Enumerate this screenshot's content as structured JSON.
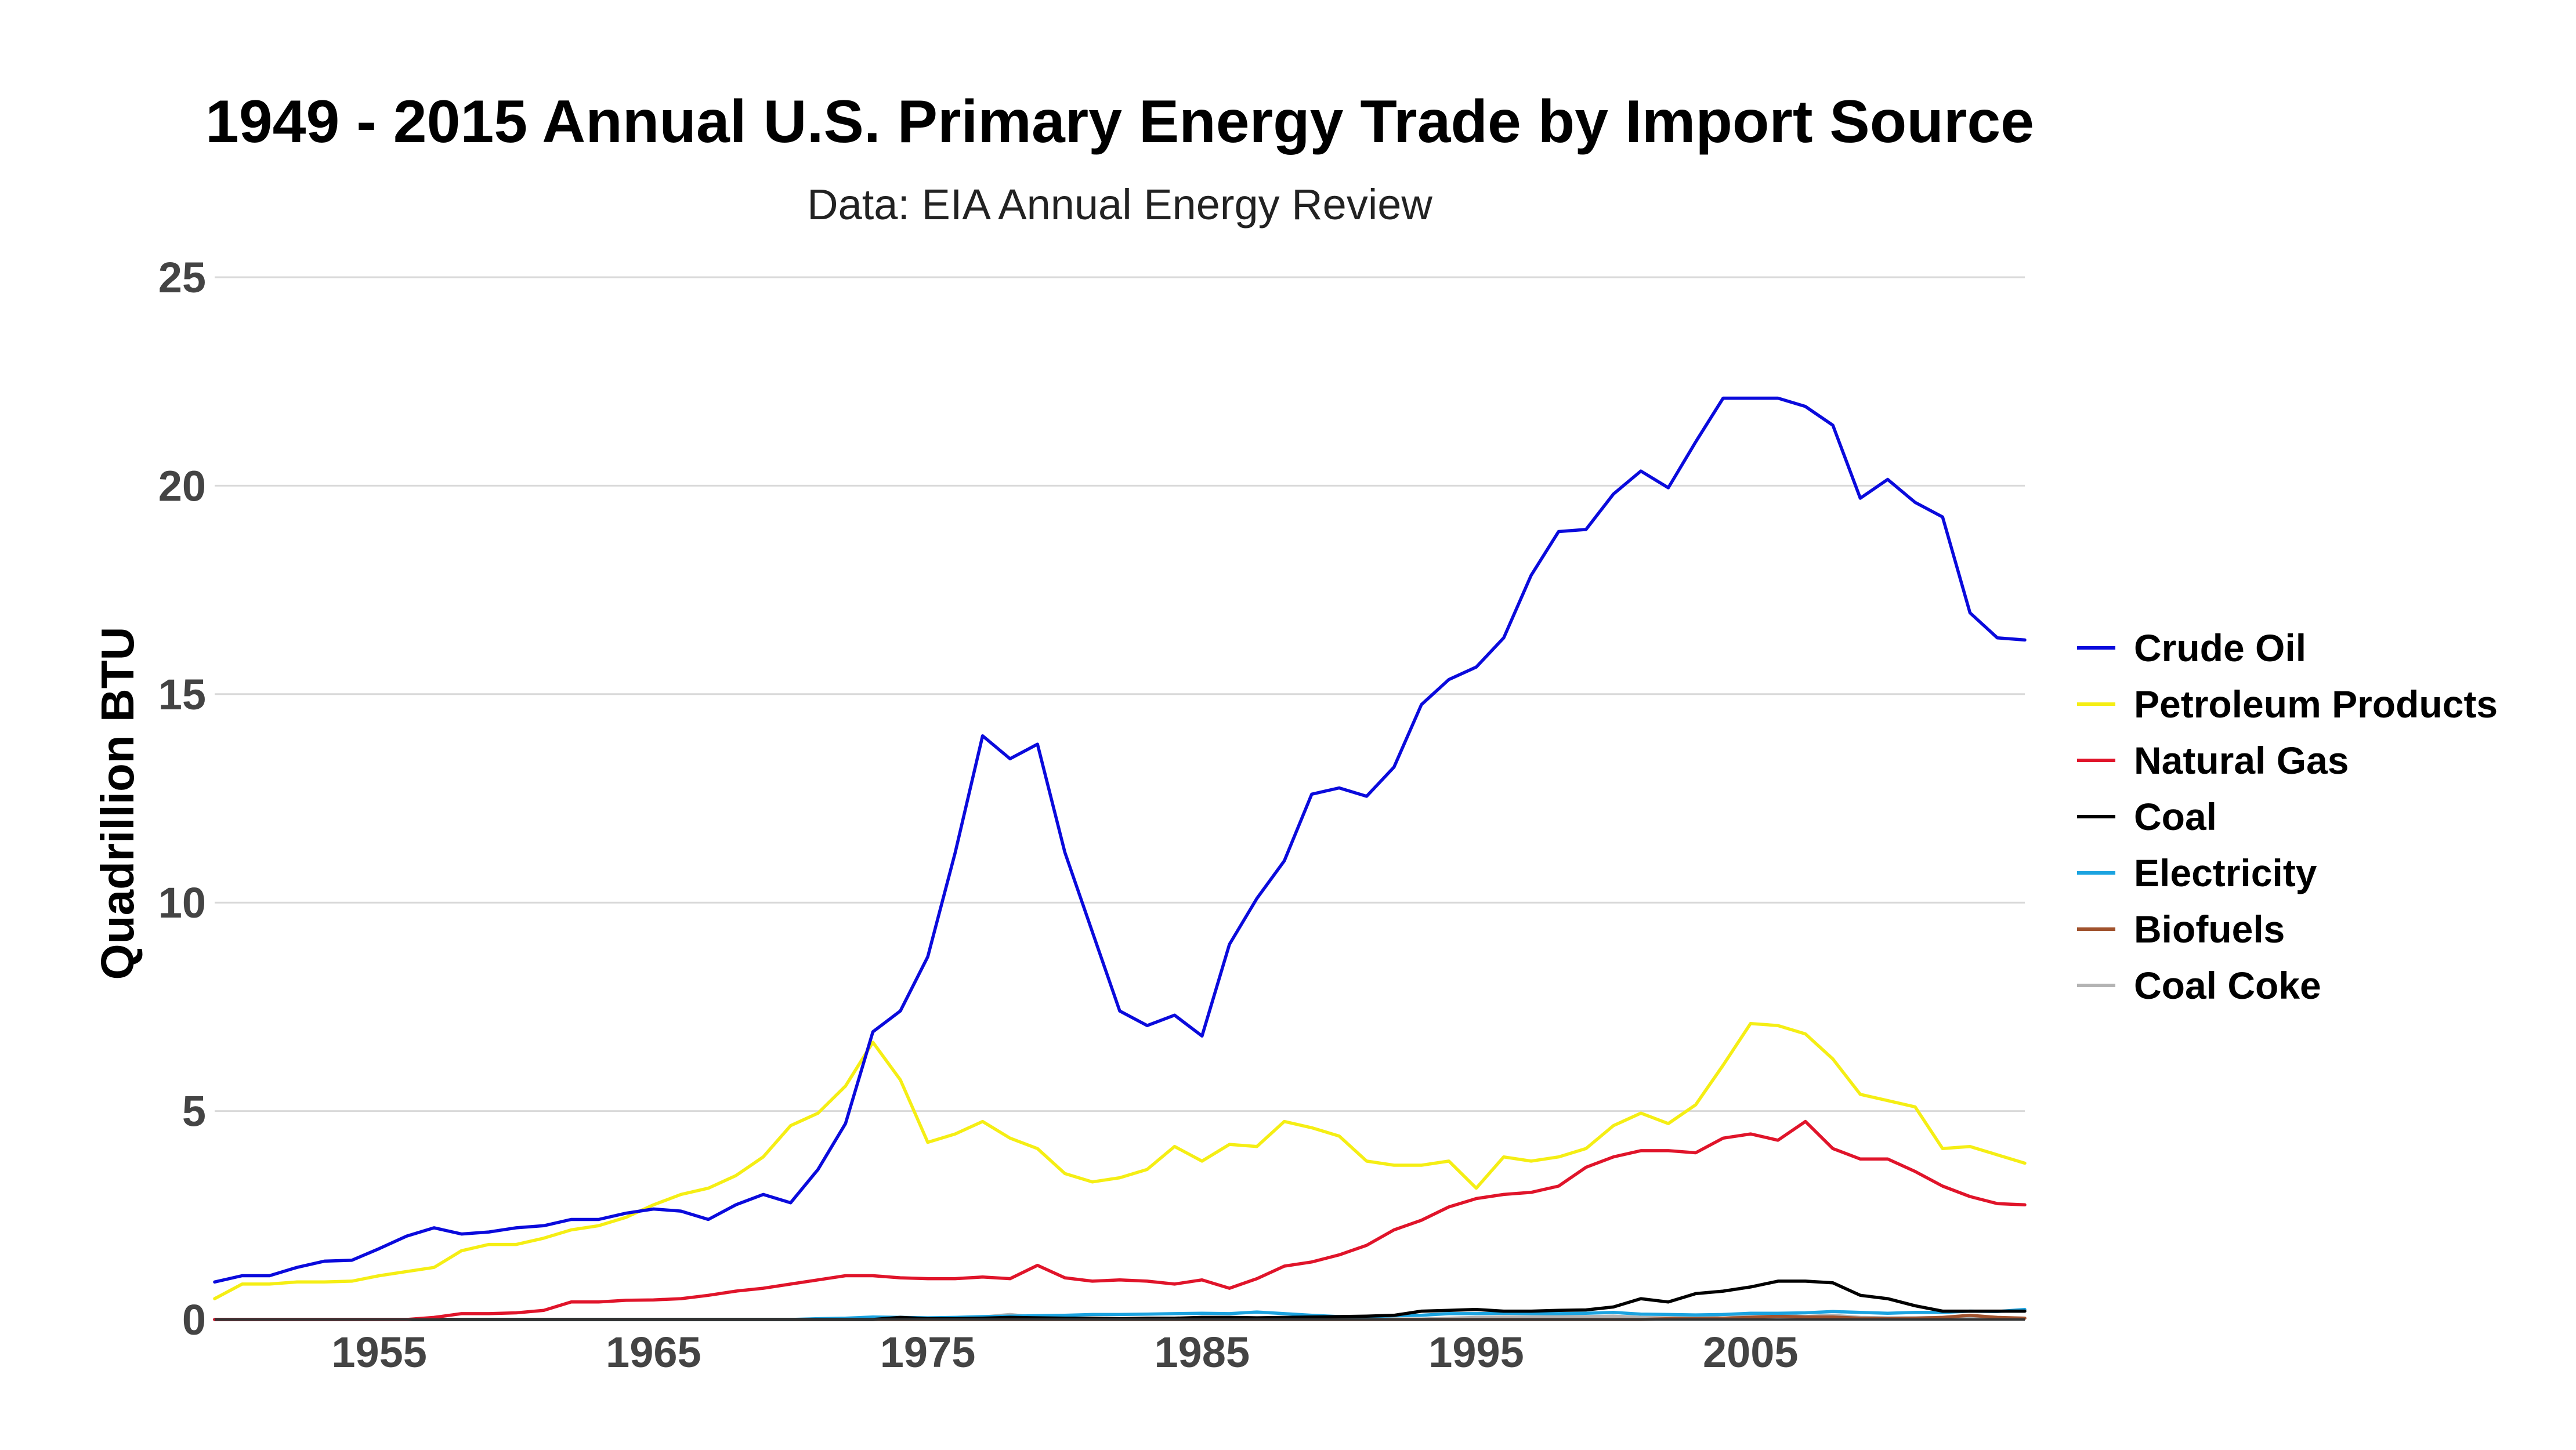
{
  "chart_data": {
    "type": "line",
    "title": "1949 - 2015 Annual U.S. Primary Energy Trade by Import Source",
    "subtitle": "Data: EIA Annual Energy Review",
    "xlabel": "",
    "ylabel": "Quadrillion BTU",
    "xlim": [
      1949,
      2015
    ],
    "ylim": [
      0,
      25
    ],
    "xticks": [
      1955,
      1965,
      1975,
      1985,
      1995,
      2005
    ],
    "yticks": [
      0,
      5,
      10,
      15,
      20,
      25
    ],
    "grid": true,
    "legend_position": "right",
    "x": [
      1949,
      1950,
      1951,
      1952,
      1953,
      1954,
      1955,
      1956,
      1957,
      1958,
      1959,
      1960,
      1961,
      1962,
      1963,
      1964,
      1965,
      1966,
      1967,
      1968,
      1969,
      1970,
      1971,
      1972,
      1973,
      1974,
      1975,
      1976,
      1977,
      1978,
      1979,
      1980,
      1981,
      1982,
      1983,
      1984,
      1985,
      1986,
      1987,
      1988,
      1989,
      1990,
      1991,
      1992,
      1993,
      1994,
      1995,
      1996,
      1997,
      1998,
      1999,
      2000,
      2001,
      2002,
      2003,
      2004,
      2005,
      2006,
      2007,
      2008,
      2009,
      2010,
      2011,
      2012,
      2013,
      2014,
      2015
    ],
    "series": [
      {
        "name": "Crude Oil",
        "color": "#0a0adc",
        "values": [
          0.9,
          1.05,
          1.05,
          1.25,
          1.4,
          1.42,
          1.7,
          2.0,
          2.2,
          2.05,
          2.1,
          2.2,
          2.25,
          2.4,
          2.4,
          2.55,
          2.65,
          2.6,
          2.4,
          2.75,
          3.0,
          2.8,
          3.6,
          4.7,
          6.9,
          7.4,
          8.7,
          11.2,
          14.0,
          13.45,
          13.8,
          11.2,
          9.3,
          7.4,
          7.05,
          7.3,
          6.8,
          9.0,
          10.1,
          11.0,
          12.6,
          12.75,
          12.55,
          13.25,
          14.75,
          15.35,
          15.65,
          16.35,
          17.85,
          18.9,
          18.95,
          19.8,
          20.35,
          19.95,
          21.05,
          22.1,
          22.1,
          22.1,
          21.9,
          21.45,
          19.7,
          20.15,
          19.6,
          19.25,
          16.95,
          16.35,
          16.3
        ]
      },
      {
        "name": "Petroleum Products",
        "color": "#f5ee14",
        "values": [
          0.5,
          0.85,
          0.85,
          0.9,
          0.9,
          0.92,
          1.05,
          1.15,
          1.25,
          1.65,
          1.8,
          1.8,
          1.95,
          2.15,
          2.25,
          2.45,
          2.75,
          3.0,
          3.15,
          3.45,
          3.9,
          4.65,
          4.95,
          5.6,
          6.65,
          5.75,
          4.25,
          4.45,
          4.75,
          4.35,
          4.1,
          3.5,
          3.3,
          3.4,
          3.6,
          4.15,
          3.8,
          4.2,
          4.15,
          4.75,
          4.6,
          4.4,
          3.8,
          3.7,
          3.7,
          3.8,
          3.15,
          3.9,
          3.8,
          3.9,
          4.1,
          4.65,
          4.95,
          4.7,
          5.15,
          6.1,
          7.1,
          7.05,
          6.85,
          6.25,
          5.4,
          5.25,
          5.1,
          4.1,
          4.15,
          3.95,
          3.75
        ]
      },
      {
        "name": "Natural Gas",
        "color": "#e0142a",
        "values": [
          0,
          0,
          0,
          0,
          0,
          0,
          0,
          0,
          0.05,
          0.14,
          0.14,
          0.16,
          0.22,
          0.42,
          0.42,
          0.46,
          0.47,
          0.5,
          0.58,
          0.68,
          0.75,
          0.85,
          0.95,
          1.05,
          1.05,
          1.0,
          0.98,
          0.98,
          1.02,
          0.98,
          1.3,
          1.0,
          0.92,
          0.95,
          0.92,
          0.85,
          0.95,
          0.75,
          0.98,
          1.28,
          1.38,
          1.55,
          1.78,
          2.15,
          2.38,
          2.7,
          2.9,
          3.0,
          3.05,
          3.2,
          3.65,
          3.9,
          4.05,
          4.05,
          4.0,
          4.35,
          4.45,
          4.3,
          4.75,
          4.1,
          3.85,
          3.85,
          3.55,
          3.2,
          2.95,
          2.78,
          2.75
        ]
      },
      {
        "name": "Coal",
        "color": "#000000",
        "values": [
          0,
          0,
          0,
          0,
          0,
          0,
          0,
          0,
          0,
          0,
          0,
          0,
          0,
          0,
          0,
          0,
          0,
          0,
          0,
          0,
          0,
          0,
          0,
          0,
          0,
          0.05,
          0.02,
          0.02,
          0.03,
          0.05,
          0.04,
          0.03,
          0.03,
          0.02,
          0.03,
          0.03,
          0.05,
          0.05,
          0.04,
          0.05,
          0.06,
          0.07,
          0.08,
          0.1,
          0.2,
          0.22,
          0.24,
          0.2,
          0.2,
          0.22,
          0.23,
          0.3,
          0.5,
          0.42,
          0.62,
          0.68,
          0.78,
          0.92,
          0.92,
          0.88,
          0.58,
          0.5,
          0.33,
          0.2,
          0.2,
          0.2,
          0.2
        ]
      },
      {
        "name": "Electricity",
        "color": "#1ba3e0",
        "values": [
          0,
          0,
          0,
          0,
          0,
          0,
          0,
          0,
          0,
          0,
          0,
          0,
          0,
          0,
          0,
          0,
          0,
          0,
          0,
          0,
          0,
          0,
          0.02,
          0.03,
          0.06,
          0.05,
          0.04,
          0.05,
          0.07,
          0.08,
          0.09,
          0.1,
          0.12,
          0.12,
          0.13,
          0.14,
          0.15,
          0.14,
          0.18,
          0.14,
          0.1,
          0.07,
          0.07,
          0.09,
          0.1,
          0.14,
          0.14,
          0.15,
          0.14,
          0.14,
          0.15,
          0.17,
          0.13,
          0.12,
          0.11,
          0.12,
          0.15,
          0.15,
          0.16,
          0.19,
          0.17,
          0.15,
          0.17,
          0.17,
          0.2,
          0.19,
          0.24
        ]
      },
      {
        "name": "Biofuels",
        "color": "#a0522d",
        "values": [
          0,
          0,
          0,
          0,
          0,
          0,
          0,
          0,
          0,
          0,
          0,
          0,
          0,
          0,
          0,
          0,
          0,
          0,
          0,
          0,
          0,
          0,
          0,
          0,
          0,
          0,
          0,
          0,
          0,
          0,
          0,
          0,
          0,
          0,
          0,
          0,
          0,
          0,
          0,
          0,
          0,
          0,
          0,
          0,
          0,
          0,
          0,
          0,
          0,
          0,
          0,
          0,
          0,
          0.02,
          0.02,
          0.03,
          0.05,
          0.08,
          0.06,
          0.06,
          0.03,
          0.02,
          0.03,
          0.05,
          0.1,
          0.05,
          0.03
        ]
      },
      {
        "name": "Coal Coke",
        "color": "#b3b3b3",
        "values": [
          0,
          0,
          0,
          0,
          0,
          0,
          0,
          0,
          0,
          0,
          0,
          0,
          0,
          0,
          0,
          0,
          0,
          0,
          0,
          0,
          0,
          0,
          0,
          0.02,
          0.03,
          0.05,
          0.03,
          0.03,
          0.06,
          0.12,
          0.05,
          0.02,
          0.02,
          0.01,
          0.01,
          0.02,
          0.02,
          0.01,
          0.01,
          0.04,
          0.03,
          0.02,
          0.01,
          0.01,
          0.01,
          0.03,
          0.05,
          0.06,
          0.06,
          0.07,
          0.07,
          0.08,
          0.05,
          0.04,
          0.06,
          0.12,
          0.1,
          0.1,
          0.07,
          0.1,
          0.05,
          0.04,
          0.04,
          0.05,
          0.05,
          0.04,
          0.03
        ]
      }
    ]
  }
}
